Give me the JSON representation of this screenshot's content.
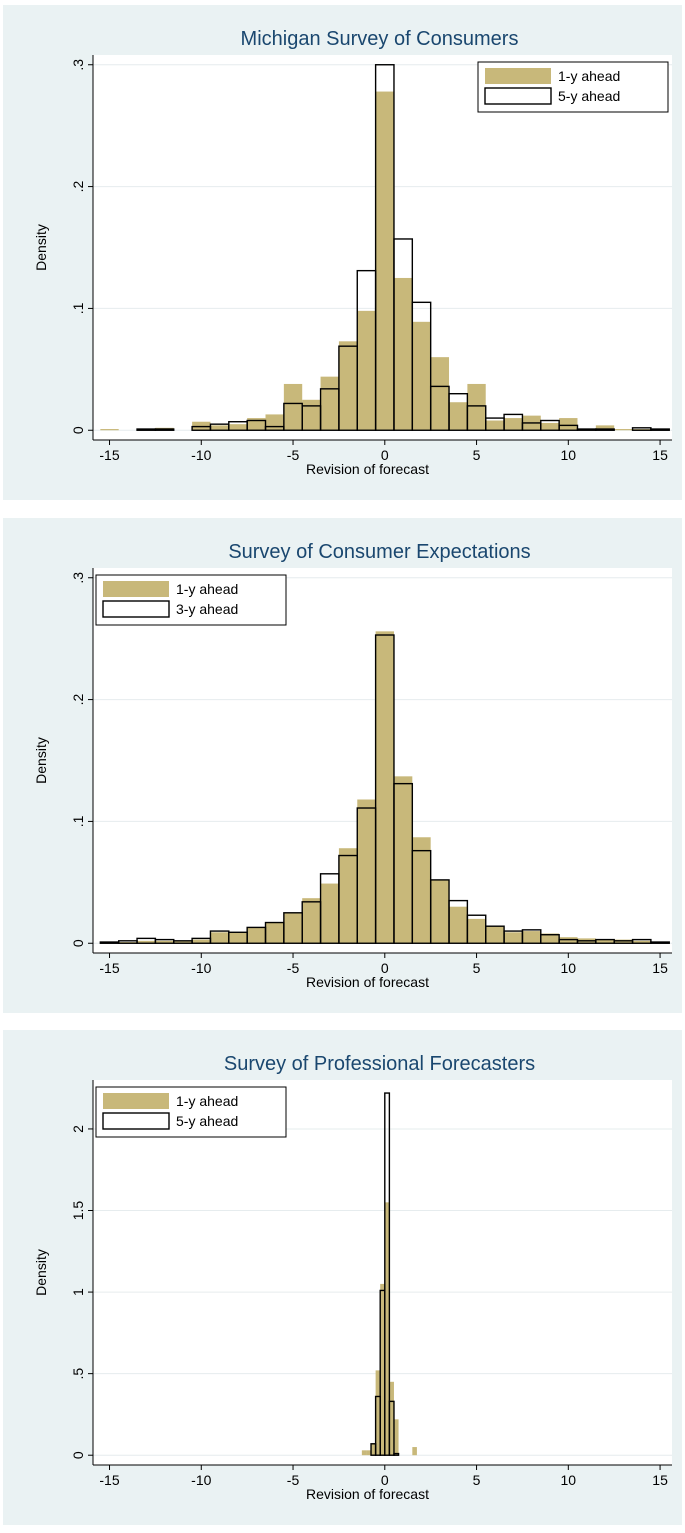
{
  "chart_data": [
    {
      "type": "histogram",
      "title": "Michigan Survey of Consumers",
      "x_label": "Revision of forecast",
      "y_label": "Density",
      "xlim": [
        -15.9,
        15.65
      ],
      "ylim": [
        -0.008,
        0.308
      ],
      "xticks": [
        -15,
        -10,
        -5,
        0,
        5,
        10,
        15
      ],
      "yticks": [
        0,
        {
          "value": 0.1,
          "label": ".1"
        },
        {
          "value": 0.2,
          "label": ".2"
        },
        {
          "value": 0.3,
          "label": ".3"
        }
      ],
      "grid": true,
      "legend": "top-right",
      "series": [
        {
          "name": "1-y ahead",
          "color": "#c8b87a",
          "style": "filled",
          "bins": [
            -15.5,
            -14.5,
            -13.5,
            -12.5,
            -11.5,
            -10.5,
            -9.5,
            -8.5,
            -7.5,
            -6.5,
            -5.5,
            -4.5,
            -3.5,
            -2.5,
            -1.5,
            -0.5,
            0.5,
            1.5,
            2.5,
            3.5,
            4.5,
            5.5,
            6.5,
            7.5,
            8.5,
            9.5,
            10.5,
            11.5,
            12.5,
            13.5,
            14.5,
            15.5
          ],
          "values": [
            0.001,
            0,
            0.001,
            0.002,
            0,
            0.007,
            0.004,
            0.005,
            0.01,
            0.013,
            0.038,
            0.025,
            0.044,
            0.073,
            0.098,
            0.278,
            0.125,
            0.089,
            0.06,
            0.023,
            0.038,
            0.008,
            0.01,
            0.012,
            0.006,
            0.01,
            0.001,
            0.004,
            0.001,
            0.001,
            0.001
          ]
        },
        {
          "name": "5-y ahead",
          "color": "#000000",
          "style": "outline",
          "bins": [
            -15.5,
            -14.5,
            -13.5,
            -12.5,
            -11.5,
            -10.5,
            -9.5,
            -8.5,
            -7.5,
            -6.5,
            -5.5,
            -4.5,
            -3.5,
            -2.5,
            -1.5,
            -0.5,
            0.5,
            1.5,
            2.5,
            3.5,
            4.5,
            5.5,
            6.5,
            7.5,
            8.5,
            9.5,
            10.5,
            11.5,
            12.5,
            13.5,
            14.5,
            15.5
          ],
          "values": [
            0,
            0,
            0.001,
            0.001,
            0,
            0.003,
            0.005,
            0.007,
            0.008,
            0.003,
            0.022,
            0.02,
            0.034,
            0.069,
            0.131,
            0.3,
            0.157,
            0.105,
            0.036,
            0.03,
            0.02,
            0.01,
            0.013,
            0.006,
            0.008,
            0.004,
            0.001,
            0.001,
            0,
            0.002,
            0.001
          ]
        }
      ]
    },
    {
      "type": "histogram",
      "title": "Survey of Consumer Expectations",
      "x_label": "Revision of forecast",
      "y_label": "Density",
      "xlim": [
        -15.9,
        15.65
      ],
      "ylim": [
        -0.008,
        0.308
      ],
      "xticks": [
        -15,
        -10,
        -5,
        0,
        5,
        10,
        15
      ],
      "yticks": [
        0,
        {
          "value": 0.1,
          "label": ".1"
        },
        {
          "value": 0.2,
          "label": ".2"
        },
        {
          "value": 0.3,
          "label": ".3"
        }
      ],
      "grid": true,
      "legend": "top-left",
      "series": [
        {
          "name": "1-y ahead",
          "color": "#c8b87a",
          "style": "filled",
          "bins": [
            -15.5,
            -14.5,
            -13.5,
            -12.5,
            -11.5,
            -10.5,
            -9.5,
            -8.5,
            -7.5,
            -6.5,
            -5.5,
            -4.5,
            -3.5,
            -2.5,
            -1.5,
            -0.5,
            0.5,
            1.5,
            2.5,
            3.5,
            4.5,
            5.5,
            6.5,
            7.5,
            8.5,
            9.5,
            10.5,
            11.5,
            12.5,
            13.5,
            14.5,
            15.5
          ],
          "values": [
            0.001,
            0.001,
            0.002,
            0.002,
            0.002,
            0.003,
            0.009,
            0.009,
            0.013,
            0.017,
            0.025,
            0.037,
            0.049,
            0.078,
            0.118,
            0.256,
            0.137,
            0.087,
            0.052,
            0.03,
            0.02,
            0.014,
            0.009,
            0.01,
            0.008,
            0.005,
            0.004,
            0.003,
            0.003,
            0.002,
            0.001
          ]
        },
        {
          "name": "3-y ahead",
          "color": "#000000",
          "style": "outline",
          "bins": [
            -15.5,
            -14.5,
            -13.5,
            -12.5,
            -11.5,
            -10.5,
            -9.5,
            -8.5,
            -7.5,
            -6.5,
            -5.5,
            -4.5,
            -3.5,
            -2.5,
            -1.5,
            -0.5,
            0.5,
            1.5,
            2.5,
            3.5,
            4.5,
            5.5,
            6.5,
            7.5,
            8.5,
            9.5,
            10.5,
            11.5,
            12.5,
            13.5,
            14.5,
            15.5
          ],
          "values": [
            0.001,
            0.002,
            0.004,
            0.003,
            0.002,
            0.004,
            0.01,
            0.009,
            0.013,
            0.017,
            0.025,
            0.034,
            0.057,
            0.072,
            0.111,
            0.253,
            0.131,
            0.076,
            0.052,
            0.035,
            0.023,
            0.014,
            0.01,
            0.011,
            0.007,
            0.003,
            0.002,
            0.003,
            0.002,
            0.003,
            0.001
          ]
        }
      ]
    },
    {
      "type": "histogram",
      "title": "Survey of Professional Forecasters",
      "x_label": "Revision of forecast",
      "y_label": "Density",
      "xlim": [
        -15.9,
        15.65
      ],
      "ylim": [
        -0.06,
        2.3
      ],
      "xticks": [
        -15,
        -10,
        -5,
        0,
        5,
        10,
        15
      ],
      "yticks": [
        0,
        {
          "value": 0.5,
          "label": ".5"
        },
        1,
        1.5,
        2
      ],
      "grid": true,
      "legend": "top-left",
      "series": [
        {
          "name": "1-y ahead",
          "color": "#c8b87a",
          "style": "filled",
          "bins": [
            -1.25,
            -1,
            -0.75,
            -0.5,
            -0.25,
            0,
            0.25,
            0.5,
            0.75,
            1,
            1.25,
            1.5,
            1.75
          ],
          "values": [
            0.03,
            0.03,
            0.07,
            0.52,
            1.05,
            1.55,
            0.45,
            0.22,
            0,
            0,
            0,
            0.05
          ]
        },
        {
          "name": "5-y ahead",
          "color": "#000000",
          "style": "outline",
          "bins": [
            -0.75,
            -0.5,
            -0.25,
            0,
            0.25,
            0.5,
            0.75
          ],
          "values": [
            0.07,
            0.36,
            1.01,
            2.22,
            0.33,
            0.01
          ]
        }
      ]
    }
  ]
}
